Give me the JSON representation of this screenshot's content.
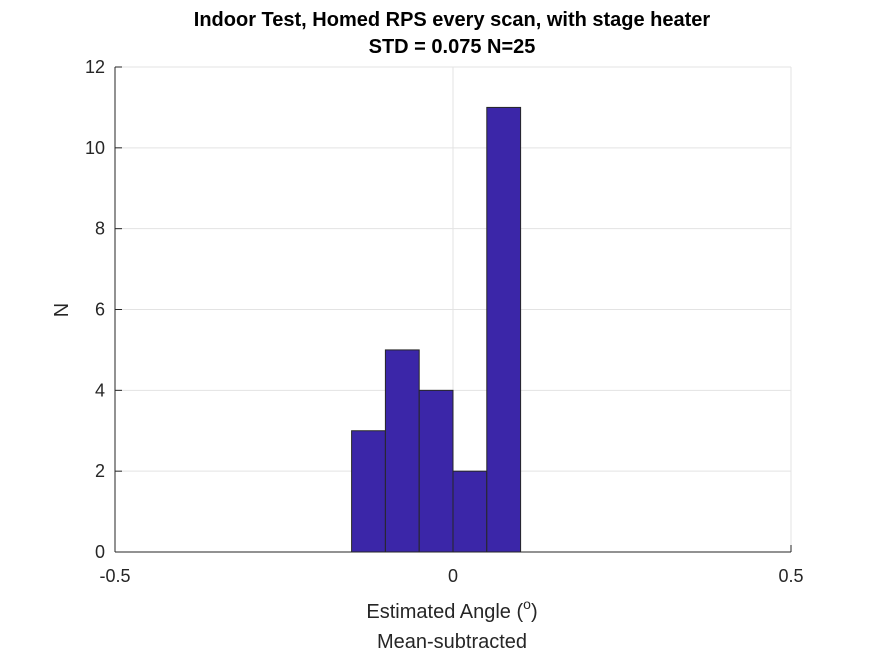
{
  "chart_data": {
    "type": "bar",
    "title": "Indoor Test, Homed RPS every scan, with stage heater",
    "subtitle": "STD = 0.075 N=25",
    "xlabel": "Estimated Angle (",
    "xlabel_sup": "o",
    "xlabel_close": ")",
    "xlabel_line2": "Mean-subtracted",
    "ylabel": "N",
    "xlim": [
      -0.5,
      0.5
    ],
    "ylim": [
      0,
      12
    ],
    "xticks": [
      -0.5,
      0,
      0.5
    ],
    "xtick_labels": [
      "-0.5",
      "0",
      "0.5"
    ],
    "yticks": [
      0,
      2,
      4,
      6,
      8,
      10,
      12
    ],
    "ytick_labels": [
      "0",
      "2",
      "4",
      "6",
      "8",
      "10",
      "12"
    ],
    "grid": true,
    "bar_color": "#3b26a8",
    "bins": [
      {
        "x0": -0.15,
        "x1": -0.1,
        "count": 3
      },
      {
        "x0": -0.1,
        "x1": -0.05,
        "count": 5
      },
      {
        "x0": -0.05,
        "x1": 0.0,
        "count": 4
      },
      {
        "x0": 0.0,
        "x1": 0.05,
        "count": 2
      },
      {
        "x0": 0.05,
        "x1": 0.1,
        "count": 11
      }
    ]
  }
}
